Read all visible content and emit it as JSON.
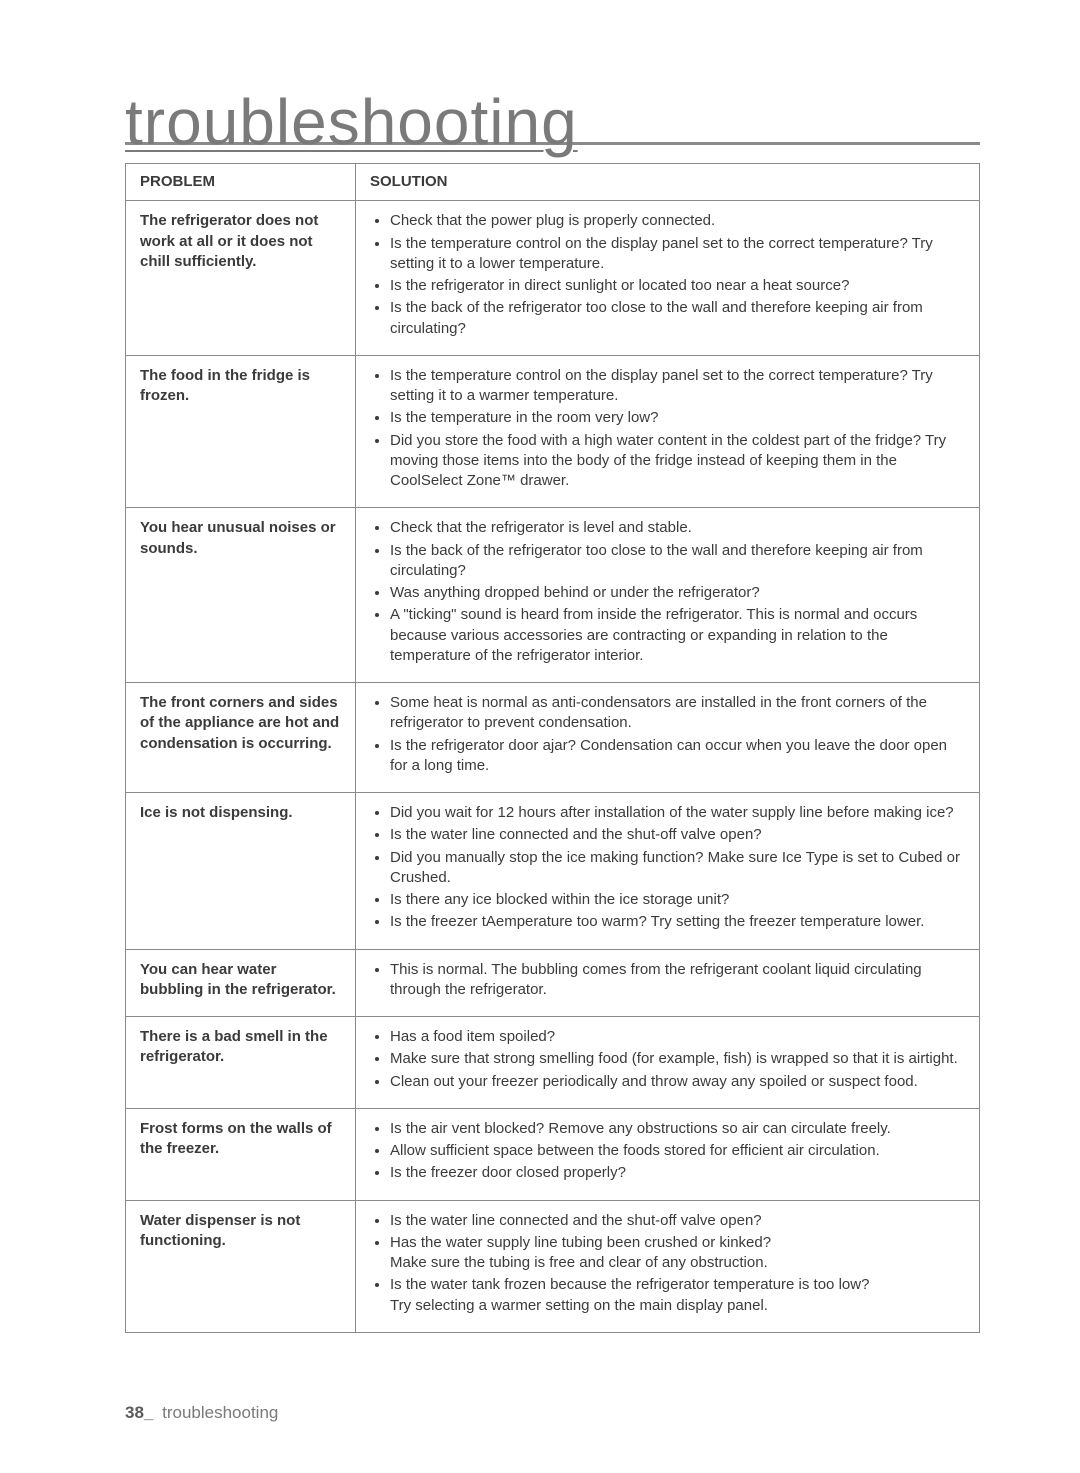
{
  "page": {
    "title": "troubleshooting",
    "footer_label": "troubleshooting",
    "page_number": "38_",
    "headers": {
      "problem": "PROBLEM",
      "solution": "SOLUTION"
    },
    "rows": [
      {
        "problem": "The refrigerator does not work at all or it does not chill sufficiently.",
        "solutions": [
          "Check that the power plug is properly connected.",
          "Is the temperature control on the display panel set to the correct temperature? Try setting it to a lower temperature.",
          "Is the refrigerator in direct sunlight or located too near a heat source?",
          "Is the back of the refrigerator too close to the wall and therefore keeping air from circulating?"
        ]
      },
      {
        "problem": "The food in the fridge is frozen.",
        "solutions": [
          "Is the temperature control on the display panel set to the correct temperature? Try setting it to a warmer temperature.",
          "Is the temperature in the room very low?",
          "Did you store the food with a high water content in the coldest part of the fridge? Try moving those items into the body of the fridge instead of keeping them in the CoolSelect Zone™ drawer."
        ]
      },
      {
        "problem": "You hear unusual noises or sounds.",
        "solutions": [
          "Check that the refrigerator is level and stable.",
          "Is the back of the refrigerator too close to the wall and therefore keeping air from circulating?",
          "Was anything dropped behind or under the refrigerator?",
          "A \"ticking\" sound is heard from inside the refrigerator. This is normal and occurs because various accessories are contracting or expanding in relation to the temperature of the refrigerator interior."
        ]
      },
      {
        "problem": "The front corners and sides of the appliance are hot and condensation is occurring.",
        "solutions": [
          "Some heat is normal as anti-condensators are installed in the front corners of the refrigerator to prevent condensation.",
          "Is the refrigerator door ajar? Condensation can occur when you leave the door open for a long time."
        ]
      },
      {
        "problem": "Ice is not dispensing.",
        "solutions": [
          "Did you wait for 12 hours after installation of the water supply line before making ice?",
          "Is the water line connected and the shut-off valve open?",
          "Did you manually stop the ice making function? Make sure Ice Type is set to Cubed or Crushed.",
          "Is there any ice blocked within the ice storage unit?",
          "Is the freezer tAemperature too warm? Try setting the freezer temperature lower."
        ]
      },
      {
        "problem": "You can hear water bubbling in the refrigerator.",
        "solutions": [
          "This is normal. The bubbling comes from the refrigerant coolant liquid circulating through the refrigerator."
        ]
      },
      {
        "problem": "There is a bad smell in the refrigerator.",
        "solutions": [
          "Has a food item spoiled?",
          "Make sure that strong smelling food (for example, fish) is wrapped so that it is airtight.",
          "Clean out your freezer periodically and throw away any spoiled or suspect food."
        ]
      },
      {
        "problem": "Frost forms on the walls of the freezer.",
        "solutions": [
          "Is the air vent blocked? Remove any obstructions so air can circulate freely.",
          "Allow sufficient space between the foods stored for efficient air circulation.",
          "Is the freezer door closed properly?"
        ]
      },
      {
        "problem": "Water dispenser is not functioning.",
        "solutions": [
          "Is the water line connected and the shut-off valve open?",
          "Has the water supply line tubing been crushed or kinked?\nMake sure the tubing is free and clear of any obstruction.",
          "Is the water tank frozen because the refrigerator temperature is too low?\nTry selecting a warmer setting on the main display panel."
        ]
      }
    ]
  }
}
